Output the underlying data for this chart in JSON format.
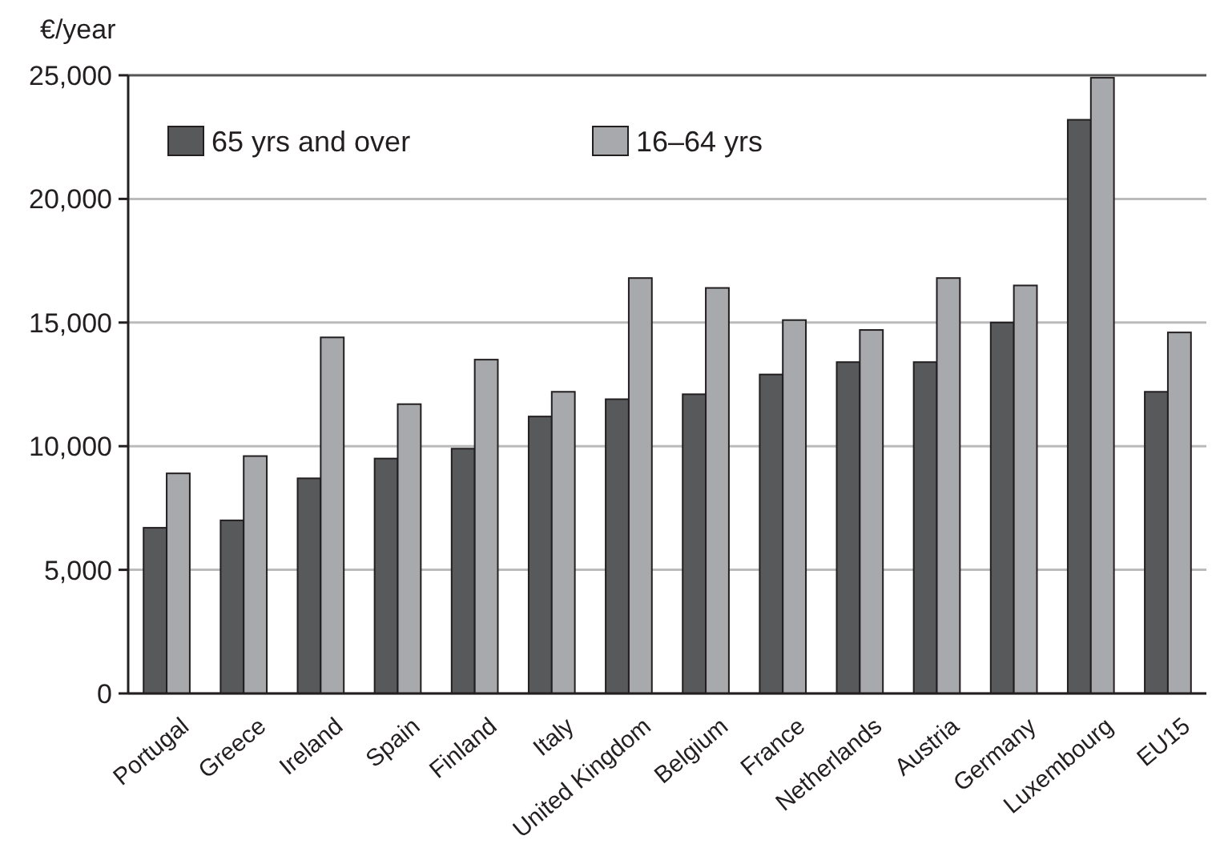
{
  "chart_data": {
    "type": "bar",
    "ylabel": "€/year",
    "categories": [
      "Portugal",
      "Greece",
      "Ireland",
      "Spain",
      "Finland",
      "Italy",
      "United Kingdom",
      "Belgium",
      "France",
      "Netherlands",
      "Austria",
      "Germany",
      "Luxembourg",
      "EU15"
    ],
    "series": [
      {
        "name": "65 yrs and over",
        "color": "#58595b",
        "values": [
          6700,
          7000,
          8700,
          9500,
          9900,
          11200,
          11900,
          12100,
          12900,
          13400,
          13400,
          15000,
          23200,
          12200
        ]
      },
      {
        "name": "16–64 yrs",
        "color": "#a7a9ac",
        "values": [
          8900,
          9600,
          14400,
          11700,
          13500,
          12200,
          16800,
          16400,
          15100,
          14700,
          16800,
          16500,
          24900,
          14600
        ]
      }
    ],
    "ylim": [
      0,
      25000
    ],
    "yticks": [
      {
        "value": 0,
        "label": "0"
      },
      {
        "value": 5000,
        "label": "5,000"
      },
      {
        "value": 10000,
        "label": "10,000"
      },
      {
        "value": 15000,
        "label": "15,000"
      },
      {
        "value": 20000,
        "label": "20,000"
      },
      {
        "value": 25000,
        "label": "25,000"
      }
    ],
    "grid": "y",
    "legend": "top left"
  }
}
